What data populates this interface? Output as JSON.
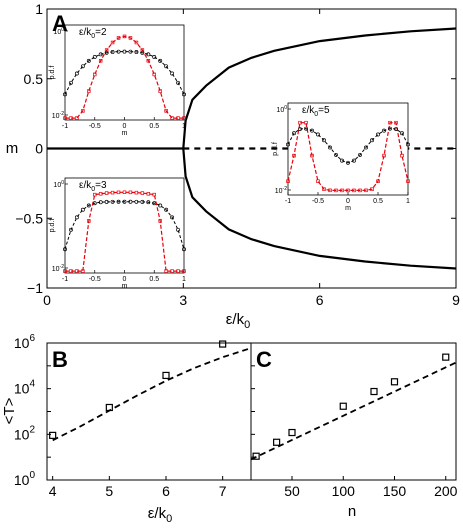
{
  "chart_data": [
    {
      "id": "A",
      "panel_label": "A",
      "type": "line",
      "xlabel_main": "ε/k",
      "xlabel_sub": "0",
      "ylabel": "m",
      "xlim": [
        0,
        9
      ],
      "ylim": [
        -1,
        1
      ],
      "xticks": [
        "0",
        "3",
        "6",
        "9"
      ],
      "xtick_values": [
        0,
        3,
        6,
        9
      ],
      "yticks": [
        "1",
        "0.5",
        "0",
        "−0.5",
        "−1"
      ],
      "ytick_values": [
        1,
        0.5,
        0,
        -0.5,
        -1
      ],
      "series": [
        {
          "style": "solid",
          "x": [
            0,
            3
          ],
          "y": [
            0,
            0
          ]
        },
        {
          "style": "dashed",
          "x": [
            3,
            9
          ],
          "y": [
            0,
            0
          ]
        },
        {
          "style": "solid",
          "x": [
            3,
            3.05,
            3.2,
            3.5,
            4,
            4.5,
            5,
            6,
            7,
            8,
            9
          ],
          "y": [
            0,
            0.2,
            0.35,
            0.45,
            0.58,
            0.65,
            0.7,
            0.77,
            0.81,
            0.84,
            0.86
          ]
        },
        {
          "style": "solid",
          "x": [
            3,
            3.05,
            3.2,
            3.5,
            4,
            4.5,
            5,
            6,
            7,
            8,
            9
          ],
          "y": [
            0,
            -0.2,
            -0.35,
            -0.45,
            -0.58,
            -0.65,
            -0.7,
            -0.77,
            -0.81,
            -0.84,
            -0.86
          ]
        }
      ],
      "insets": [
        {
          "id": "inset-eps2",
          "label_main": "ε/k",
          "label_sub": "0",
          "label_suffix": "=2",
          "xlabel": "m",
          "ylabel": "p.d.f",
          "xlim": [
            -1,
            1
          ],
          "xticks": [
            "-1",
            "-0.5",
            "0",
            "0.5",
            "1"
          ],
          "yticks": [
            "10",
            "10"
          ],
          "ytick_sup": [
            "0",
            "-2"
          ]
        },
        {
          "id": "inset-eps3",
          "label_main": "ε/k",
          "label_sub": "0",
          "label_suffix": "=3",
          "xlabel": "m",
          "ylabel": "p.d.f",
          "xlim": [
            -1,
            1
          ],
          "xticks": [
            "-1",
            "-0.5",
            "0",
            "0.5",
            "1"
          ],
          "yticks": [
            "10",
            "10"
          ],
          "ytick_sup": [
            "0",
            "-2"
          ]
        },
        {
          "id": "inset-eps5",
          "label_main": "ε/k",
          "label_sub": "0",
          "label_suffix": "=5",
          "xlabel": "m",
          "ylabel": "p.d.f",
          "xlim": [
            -1,
            1
          ],
          "xticks": [
            "-1",
            "-0.5",
            "0",
            "0.5",
            "1"
          ],
          "yticks": [
            "10",
            "10"
          ],
          "ytick_sup": [
            "0",
            "-2"
          ]
        }
      ]
    },
    {
      "id": "B",
      "panel_label": "B",
      "type": "scatter",
      "xlabel_main": "ε/k",
      "xlabel_sub": "0",
      "ylabel": "<T>",
      "yscale": "log",
      "xlim": [
        3.9,
        7.5
      ],
      "ylim": [
        1,
        1000000
      ],
      "xticks": [
        "4",
        "5",
        "6",
        "7"
      ],
      "xtick_values": [
        4,
        5,
        6,
        7
      ],
      "yticks": [
        "10",
        "10",
        "10",
        "10"
      ],
      "ytick_sup": [
        "0",
        "2",
        "4",
        "6"
      ],
      "ytick_values": [
        1,
        100,
        10000,
        1000000
      ],
      "points": {
        "x": [
          4,
          5,
          6,
          7
        ],
        "y": [
          90,
          1500,
          38000,
          900000
        ]
      },
      "fit": {
        "style": "dashed",
        "x": [
          4,
          4.5,
          5,
          5.5,
          6,
          6.5,
          7,
          7.5
        ],
        "y": [
          55,
          230,
          1100,
          5200,
          22000,
          80000,
          240000,
          600000
        ]
      }
    },
    {
      "id": "C",
      "panel_label": "C",
      "type": "scatter",
      "xlabel": "n",
      "yscale": "log",
      "xlim": [
        10,
        210
      ],
      "ylim": [
        1,
        1000000
      ],
      "xticks": [
        "50",
        "100",
        "150",
        "200"
      ],
      "xtick_values": [
        50,
        100,
        150,
        200
      ],
      "points": {
        "x": [
          15,
          35,
          50,
          100,
          130,
          150,
          200
        ],
        "y": [
          11,
          45,
          120,
          1700,
          7500,
          20000,
          240000
        ]
      },
      "fit": {
        "style": "dashed",
        "x": [
          10,
          210
        ],
        "y": [
          8,
          140000
        ]
      }
    }
  ]
}
